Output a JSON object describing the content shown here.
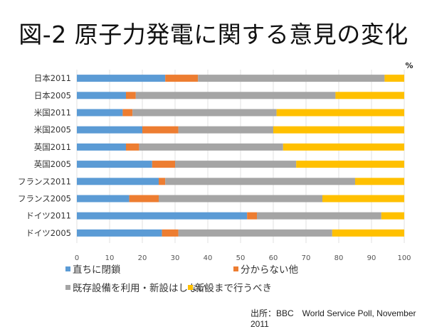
{
  "chart_data": {
    "type": "bar",
    "orientation": "horizontal",
    "stacked": true,
    "title": "図-2 原子力発電に関する意見の変化",
    "unit_label": "%",
    "xlabel": "",
    "ylabel": "",
    "xlim": [
      0,
      100
    ],
    "x_ticks": [
      "0",
      "10",
      "20",
      "30",
      "40",
      "50",
      "60",
      "70",
      "80",
      "90",
      "100"
    ],
    "grid": true,
    "legend_position": "bottom",
    "categories": [
      "日本2011",
      "日本2005",
      "米国2011",
      "米国2005",
      "英国2011",
      "英国2005",
      "フランス2011",
      "フランス2005",
      "ドイツ2011",
      "ドイツ2005"
    ],
    "series": [
      {
        "name": "直ちに閉鎖",
        "color": "#5b9bd5",
        "values": [
          27,
          15,
          14,
          20,
          15,
          23,
          25,
          16,
          52,
          26
        ]
      },
      {
        "name": "分からない他",
        "color": "#ed7d31",
        "values": [
          10,
          3,
          3,
          11,
          4,
          7,
          2,
          9,
          3,
          5
        ]
      },
      {
        "name": "既存設備を利用・新設はしない",
        "color": "#a5a5a5",
        "values": [
          57,
          61,
          44,
          29,
          44,
          37,
          58,
          50,
          38,
          47
        ]
      },
      {
        "name": "新設まで行うべき",
        "color": "#ffc000",
        "values": [
          6,
          21,
          39,
          40,
          37,
          33,
          15,
          25,
          7,
          22
        ]
      }
    ],
    "source": "出所：BBC　World Service Poll, November 2011"
  }
}
